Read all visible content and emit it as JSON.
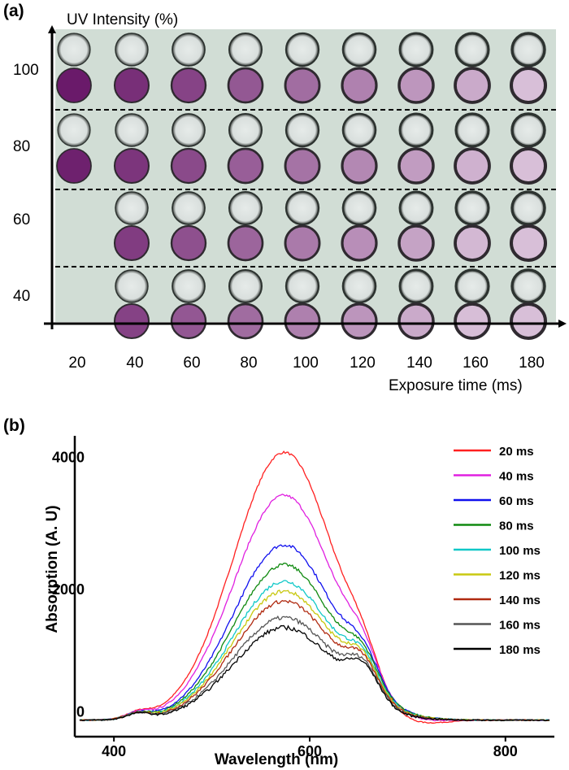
{
  "panel_a": {
    "label": "(a)",
    "y_axis_title": "UV Intensity (%)",
    "x_axis_title": "Exposure time (ms)",
    "intensity_rows": [
      "100",
      "80",
      "60",
      "40"
    ],
    "exposure_columns": [
      "20",
      "40",
      "60",
      "80",
      "100",
      "120",
      "140",
      "160",
      "180"
    ],
    "colors": {
      "background": "#cfdcd4",
      "clear_droplet": "#dfe4e2",
      "dark_magenta": "#6a1a6a",
      "light_magenta": "#d8bfd8"
    },
    "empty_cells": [
      {
        "row": "60",
        "column": "20"
      },
      {
        "row": "40",
        "column": "20"
      }
    ]
  },
  "chart_data": {
    "type": "line",
    "panel_label": "(b)",
    "title": "",
    "xlabel": "Wavelength (nm)",
    "ylabel": "Absorption (A. U)",
    "xlim": [
      360,
      850
    ],
    "ylim": [
      -250,
      4300
    ],
    "xticks": [
      "400",
      "600",
      "800"
    ],
    "yticks": [
      "0",
      "2000",
      "4000"
    ],
    "legend_position": "top-right",
    "series": [
      {
        "name": "20 ms",
        "color": "#ff2020",
        "peak": 4050,
        "shoulder": 900,
        "trough": -180,
        "noise": 25
      },
      {
        "name": "40 ms",
        "color": "#e020e0",
        "peak": 3400,
        "shoulder": 800,
        "trough": -90,
        "noise": 30
      },
      {
        "name": "60 ms",
        "color": "#1010ee",
        "peak": 2650,
        "shoulder": 700,
        "trough": -10,
        "noise": 35
      },
      {
        "name": "80 ms",
        "color": "#108a10",
        "peak": 2350,
        "shoulder": 680,
        "trough": 0,
        "noise": 35
      },
      {
        "name": "100 ms",
        "color": "#10c8c8",
        "peak": 2100,
        "shoulder": 650,
        "trough": 0,
        "noise": 40
      },
      {
        "name": "120 ms",
        "color": "#c8c810",
        "peak": 1950,
        "shoulder": 640,
        "trough": 0,
        "noise": 40
      },
      {
        "name": "140 ms",
        "color": "#b02a10",
        "peak": 1800,
        "shoulder": 620,
        "trough": 0,
        "noise": 40
      },
      {
        "name": "160 ms",
        "color": "#555555",
        "peak": 1550,
        "shoulder": 600,
        "trough": 0,
        "noise": 45
      },
      {
        "name": "180 ms",
        "color": "#000000",
        "peak": 1400,
        "shoulder": 580,
        "trough": 0,
        "noise": 45
      }
    ]
  }
}
